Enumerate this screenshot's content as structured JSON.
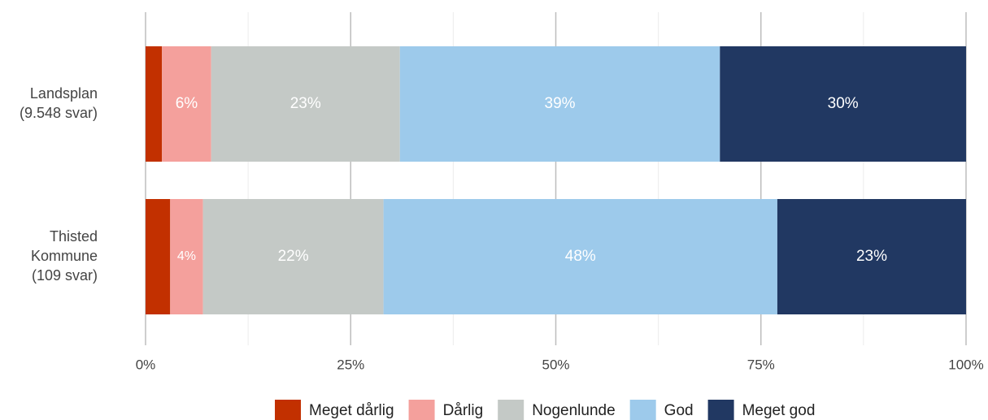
{
  "chart_data": {
    "type": "stacked-barh",
    "categories": [
      [
        "Landsplan",
        "(9.548 svar)"
      ],
      [
        "Thisted",
        "Kommune",
        "(109 svar)"
      ]
    ],
    "series": [
      {
        "name": "Meget dårlig",
        "color": "#c23000",
        "values": [
          2,
          3
        ],
        "value_labels": [
          null,
          null
        ]
      },
      {
        "name": "Dårlig",
        "color": "#f4a09c",
        "values": [
          6,
          4
        ],
        "value_labels": [
          "6%",
          "4%"
        ]
      },
      {
        "name": "Nogenlunde",
        "color": "#c4c9c6",
        "values": [
          23,
          22
        ],
        "value_labels": [
          "23%",
          "22%"
        ]
      },
      {
        "name": "God",
        "color": "#9dcaeb",
        "values": [
          39,
          48
        ],
        "value_labels": [
          "39%",
          "48%"
        ]
      },
      {
        "name": "Meget god",
        "color": "#213862",
        "values": [
          30,
          23
        ],
        "value_labels": [
          "30%",
          "23%"
        ]
      }
    ],
    "xlim": [
      0,
      100
    ],
    "xticks": [
      {
        "value": 0,
        "label": "0%"
      },
      {
        "value": 25,
        "label": "25%"
      },
      {
        "value": 50,
        "label": "50%"
      },
      {
        "value": 75,
        "label": "75%"
      },
      {
        "value": 100,
        "label": "100%"
      }
    ],
    "xminorticks": [
      12.5,
      37.5,
      62.5,
      87.5
    ],
    "grid": true,
    "legend": "bottom"
  }
}
